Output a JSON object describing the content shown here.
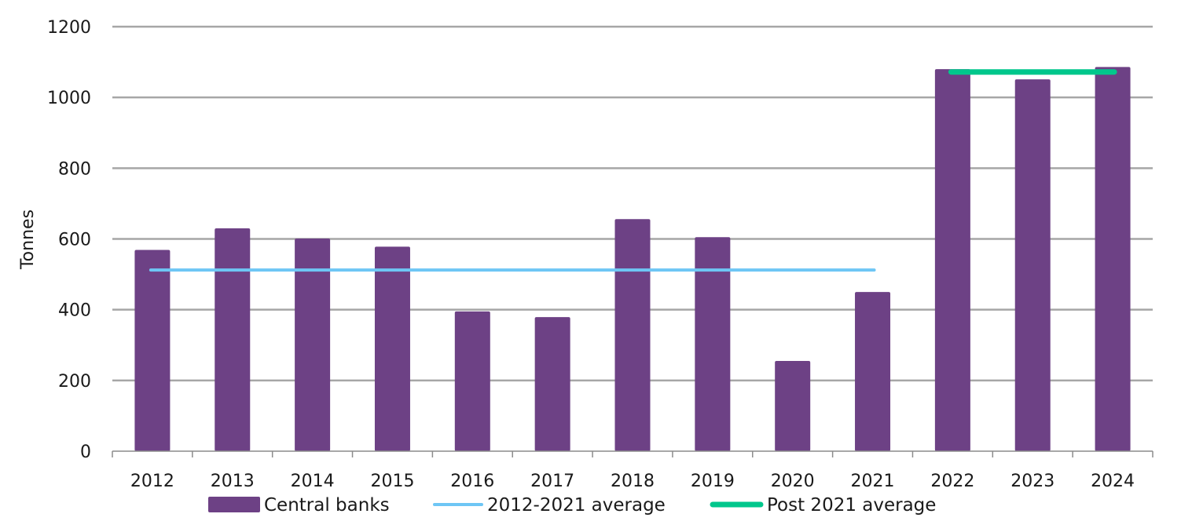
{
  "chart_data": {
    "type": "bar",
    "categories": [
      "2012",
      "2013",
      "2014",
      "2015",
      "2016",
      "2017",
      "2018",
      "2019",
      "2020",
      "2021",
      "2022",
      "2023",
      "2024"
    ],
    "series": [
      {
        "name": "Central banks",
        "type": "bar",
        "color": "#6d4185",
        "values": [
          569,
          630,
          601,
          578,
          395,
          379,
          656,
          605,
          255,
          450,
          1080,
          1051,
          1086
        ]
      },
      {
        "name": "2012-2021 average",
        "type": "line",
        "color": "#6ec6f5",
        "value": 512,
        "from": "2012",
        "to": "2021"
      },
      {
        "name": "Post 2021 average",
        "type": "line",
        "color": "#00c78c",
        "value": 1072,
        "from": "2022",
        "to": "2024"
      }
    ],
    "title": "",
    "xlabel": "",
    "ylabel": "Tonnes",
    "ylim": [
      0,
      1200
    ],
    "yticks": [
      0,
      200,
      400,
      600,
      800,
      1000,
      1200
    ],
    "grid": true,
    "legend": "bottom"
  }
}
